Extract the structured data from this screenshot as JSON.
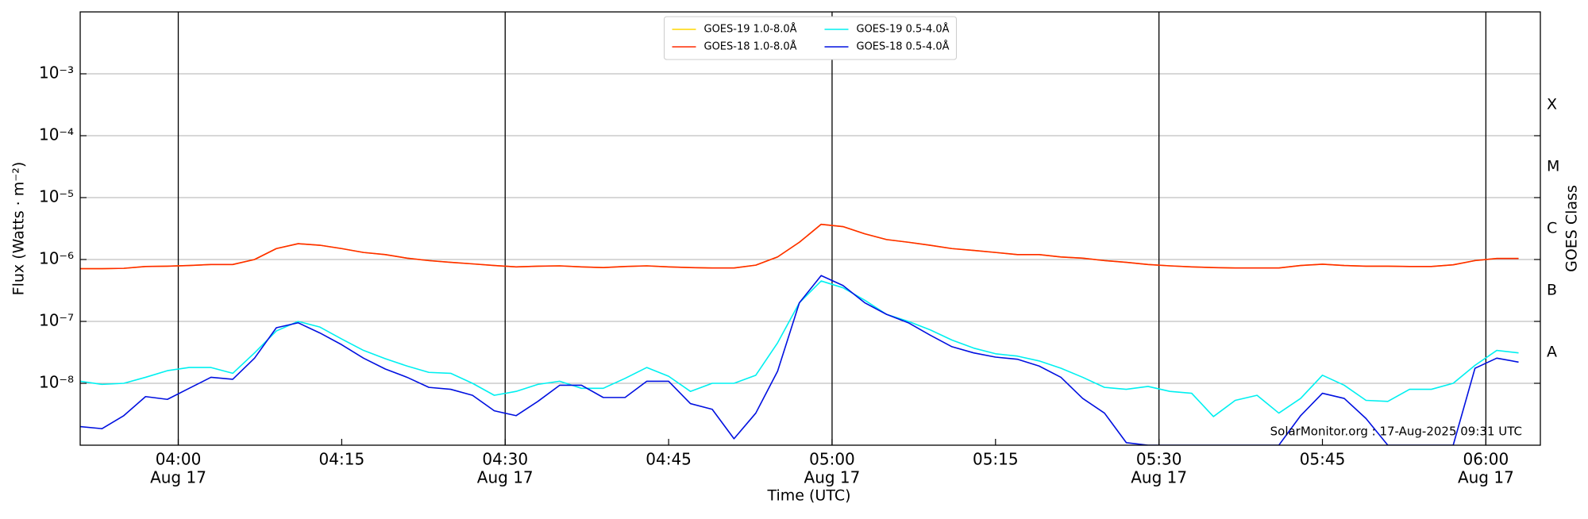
{
  "chart_data": {
    "type": "line",
    "xlabel": "Time (UTC)",
    "ylabel": "Flux (Watts · m⁻²)",
    "y2label": "GOES Class",
    "annotation": "SolarMonitor.org : 17-Aug-2025 09:31 UTC",
    "log_y": true,
    "grid": true,
    "legend": "upper center",
    "xlim": [
      "03:51",
      "06:05"
    ],
    "xticks": [
      {
        "value": "04:00",
        "label": [
          "04:00",
          "Aug 17"
        ]
      },
      "04:15",
      {
        "value": "04:30",
        "label": [
          "04:30",
          "Aug 17"
        ]
      },
      "04:45",
      {
        "value": "05:00",
        "label": [
          "05:00",
          "Aug 17"
        ]
      },
      "05:15",
      {
        "value": "05:30",
        "label": [
          "05:30",
          "Aug 17"
        ]
      },
      "05:45",
      {
        "value": "06:00",
        "label": [
          "06:00",
          "Aug 17"
        ]
      }
    ],
    "ylim": [
      1e-09,
      0.01
    ],
    "yticks": [
      {
        "value": 1e-08,
        "label": "10⁻⁸"
      },
      {
        "value": 1e-07,
        "label": "10⁻⁷"
      },
      {
        "value": 1e-06,
        "label": "10⁻⁶"
      },
      {
        "value": 1e-05,
        "label": "10⁻⁵"
      },
      {
        "value": 0.0001,
        "label": "10⁻⁴"
      },
      {
        "value": 0.001,
        "label": "10⁻³"
      }
    ],
    "y2lim": [
      1e-09,
      0.01
    ],
    "y2ticks": [
      {
        "value": 1e-08,
        "label": "A"
      },
      {
        "value": 1e-07,
        "label": "B"
      },
      {
        "value": 1e-06,
        "label": "C"
      },
      {
        "value": 1e-05,
        "label": "M"
      },
      {
        "value": 0.0001,
        "label": "X"
      }
    ],
    "x": [
      "03:51",
      "03:53",
      "03:55",
      "03:57",
      "03:59",
      "04:01",
      "04:03",
      "04:05",
      "04:07",
      "04:09",
      "04:11",
      "04:13",
      "04:15",
      "04:17",
      "04:19",
      "04:21",
      "04:23",
      "04:25",
      "04:27",
      "04:29",
      "04:31",
      "04:33",
      "04:35",
      "04:37",
      "04:39",
      "04:41",
      "04:43",
      "04:45",
      "04:47",
      "04:49",
      "04:51",
      "04:53",
      "04:55",
      "04:57",
      "04:59",
      "05:01",
      "05:03",
      "05:05",
      "05:07",
      "05:09",
      "05:11",
      "05:13",
      "05:15",
      "05:17",
      "05:19",
      "05:21",
      "05:23",
      "05:25",
      "05:27",
      "05:29",
      "05:31",
      "05:33",
      "05:35",
      "05:37",
      "05:39",
      "05:41",
      "05:43",
      "05:45",
      "05:47",
      "05:49",
      "05:51",
      "05:53",
      "05:55",
      "05:57",
      "05:59",
      "06:01",
      "06:03"
    ],
    "series": [
      {
        "name": "GOES-19 1.0-8.0Å",
        "color": "#ffd700",
        "values": [
          7.1e-07,
          7.1e-07,
          7.2e-07,
          7.7e-07,
          7.8e-07,
          8e-07,
          8.3e-07,
          8.3e-07,
          1e-06,
          1.5e-06,
          1.8e-06,
          1.7e-06,
          1.5e-06,
          1.3e-06,
          1.2e-06,
          1.05e-06,
          9.6e-07,
          9e-07,
          8.5e-07,
          8e-07,
          7.6e-07,
          7.8e-07,
          7.9e-07,
          7.6e-07,
          7.4e-07,
          7.7e-07,
          7.9e-07,
          7.6e-07,
          7.4e-07,
          7.3e-07,
          7.3e-07,
          8.1e-07,
          1.1e-06,
          1.9e-06,
          3.7e-06,
          3.4e-06,
          2.6e-06,
          2.1e-06,
          1.9e-06,
          1.7e-06,
          1.5e-06,
          1.4e-06,
          1.3e-06,
          1.2e-06,
          1.2e-06,
          1.1e-06,
          1.05e-06,
          9.6e-07,
          9e-07,
          8.3e-07,
          7.9e-07,
          7.6e-07,
          7.4e-07,
          7.3e-07,
          7.3e-07,
          7.3e-07,
          8e-07,
          8.4e-07,
          8e-07,
          7.8e-07,
          7.8e-07,
          7.7e-07,
          7.7e-07,
          8.2e-07,
          9.6e-07,
          1.04e-06,
          1.04e-06
        ]
      },
      {
        "name": "GOES-18 1.0-8.0Å",
        "color": "#ff2a00",
        "values": [
          7.1e-07,
          7.1e-07,
          7.2e-07,
          7.7e-07,
          7.8e-07,
          8e-07,
          8.3e-07,
          8.3e-07,
          1e-06,
          1.5e-06,
          1.8e-06,
          1.7e-06,
          1.5e-06,
          1.3e-06,
          1.2e-06,
          1.05e-06,
          9.6e-07,
          9e-07,
          8.5e-07,
          8e-07,
          7.6e-07,
          7.8e-07,
          7.9e-07,
          7.6e-07,
          7.4e-07,
          7.7e-07,
          7.9e-07,
          7.6e-07,
          7.4e-07,
          7.3e-07,
          7.3e-07,
          8.1e-07,
          1.1e-06,
          1.9e-06,
          3.7e-06,
          3.4e-06,
          2.6e-06,
          2.1e-06,
          1.9e-06,
          1.7e-06,
          1.5e-06,
          1.4e-06,
          1.3e-06,
          1.2e-06,
          1.2e-06,
          1.1e-06,
          1.05e-06,
          9.6e-07,
          9e-07,
          8.3e-07,
          7.9e-07,
          7.6e-07,
          7.4e-07,
          7.3e-07,
          7.3e-07,
          7.3e-07,
          8e-07,
          8.4e-07,
          8e-07,
          7.8e-07,
          7.8e-07,
          7.7e-07,
          7.7e-07,
          8.2e-07,
          9.6e-07,
          1.04e-06,
          1.04e-06
        ]
      },
      {
        "name": "GOES-19 0.5-4.0Å",
        "color": "#00f0f0",
        "values": [
          1.08e-08,
          9.6e-09,
          1e-08,
          1.25e-08,
          1.6e-08,
          1.8e-08,
          1.8e-08,
          1.45e-08,
          3.1e-08,
          7e-08,
          1e-07,
          8.1e-08,
          5.2e-08,
          3.4e-08,
          2.5e-08,
          1.9e-08,
          1.5e-08,
          1.45e-08,
          1e-08,
          6.4e-09,
          7.4e-09,
          9.6e-09,
          1.08e-08,
          8.3e-09,
          8.3e-09,
          1.2e-08,
          1.8e-08,
          1.3e-08,
          7.4e-09,
          1e-08,
          1e-08,
          1.35e-08,
          4.5e-08,
          2e-07,
          4.5e-07,
          3.5e-07,
          2.2e-07,
          1.3e-07,
          1e-07,
          7.3e-08,
          5e-08,
          3.7e-08,
          3e-08,
          2.75e-08,
          2.3e-08,
          1.75e-08,
          1.25e-08,
          8.6e-09,
          8e-09,
          8.9e-09,
          7.4e-09,
          6.9e-09,
          2.9e-09,
          5.3e-09,
          6.4e-09,
          3.3e-09,
          5.7e-09,
          1.35e-08,
          9.3e-09,
          5.3e-09,
          5.1e-09,
          8e-09,
          8e-09,
          1e-08,
          1.95e-08,
          3.4e-08,
          3.1e-08
        ]
      },
      {
        "name": "GOES-18 0.5-4.0Å",
        "color": "#0010e0",
        "values": [
          2e-09,
          1.85e-09,
          3e-09,
          6.1e-09,
          5.5e-09,
          8.3e-09,
          1.25e-08,
          1.16e-08,
          2.55e-08,
          7.9e-08,
          9.5e-08,
          6.5e-08,
          4.2e-08,
          2.55e-08,
          1.7e-08,
          1.25e-08,
          8.6e-09,
          8e-09,
          6.4e-09,
          3.6e-09,
          3e-09,
          5.1e-09,
          9.3e-09,
          9.3e-09,
          5.9e-09,
          5.9e-09,
          1.08e-08,
          1.08e-08,
          4.7e-09,
          3.8e-09,
          1.27e-09,
          3.3e-09,
          1.57e-08,
          2e-07,
          5.5e-07,
          3.8e-07,
          2e-07,
          1.3e-07,
          9.5e-08,
          6e-08,
          3.9e-08,
          3.1e-08,
          2.65e-08,
          2.45e-08,
          1.9e-08,
          1.25e-08,
          5.7e-09,
          3.3e-09,
          1.1e-09,
          1e-09,
          1e-09,
          1e-09,
          1e-09,
          1e-09,
          1e-09,
          1e-09,
          3e-09,
          6.9e-09,
          5.7e-09,
          2.7e-09,
          1e-09,
          1e-09,
          1e-09,
          1e-09,
          1.75e-08,
          2.55e-08,
          2.2e-08
        ]
      }
    ]
  }
}
